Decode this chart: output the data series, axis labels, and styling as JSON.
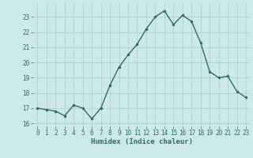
{
  "x": [
    0,
    1,
    2,
    3,
    4,
    5,
    6,
    7,
    8,
    9,
    10,
    11,
    12,
    13,
    14,
    15,
    16,
    17,
    18,
    19,
    20,
    21,
    22,
    23
  ],
  "y": [
    17.0,
    16.9,
    16.8,
    16.5,
    17.2,
    17.0,
    16.3,
    17.0,
    18.5,
    19.7,
    20.5,
    21.2,
    22.2,
    23.0,
    23.4,
    22.5,
    23.1,
    22.7,
    21.3,
    19.4,
    19.0,
    19.1,
    18.1,
    17.7
  ],
  "xlabel": "Humidex (Indice chaleur)",
  "ylim": [
    15.8,
    23.9
  ],
  "yticks": [
    16,
    17,
    18,
    19,
    20,
    21,
    22,
    23
  ],
  "xticks": [
    0,
    1,
    2,
    3,
    4,
    5,
    6,
    7,
    8,
    9,
    10,
    11,
    12,
    13,
    14,
    15,
    16,
    17,
    18,
    19,
    20,
    21,
    22,
    23
  ],
  "line_color": "#2d6e5e",
  "marker_color": "#2d6e5e",
  "bg_color": "#cce8e8",
  "grid_color": "#b0d0d0",
  "label_color": "#2d6e5e",
  "font_family": "monospace"
}
